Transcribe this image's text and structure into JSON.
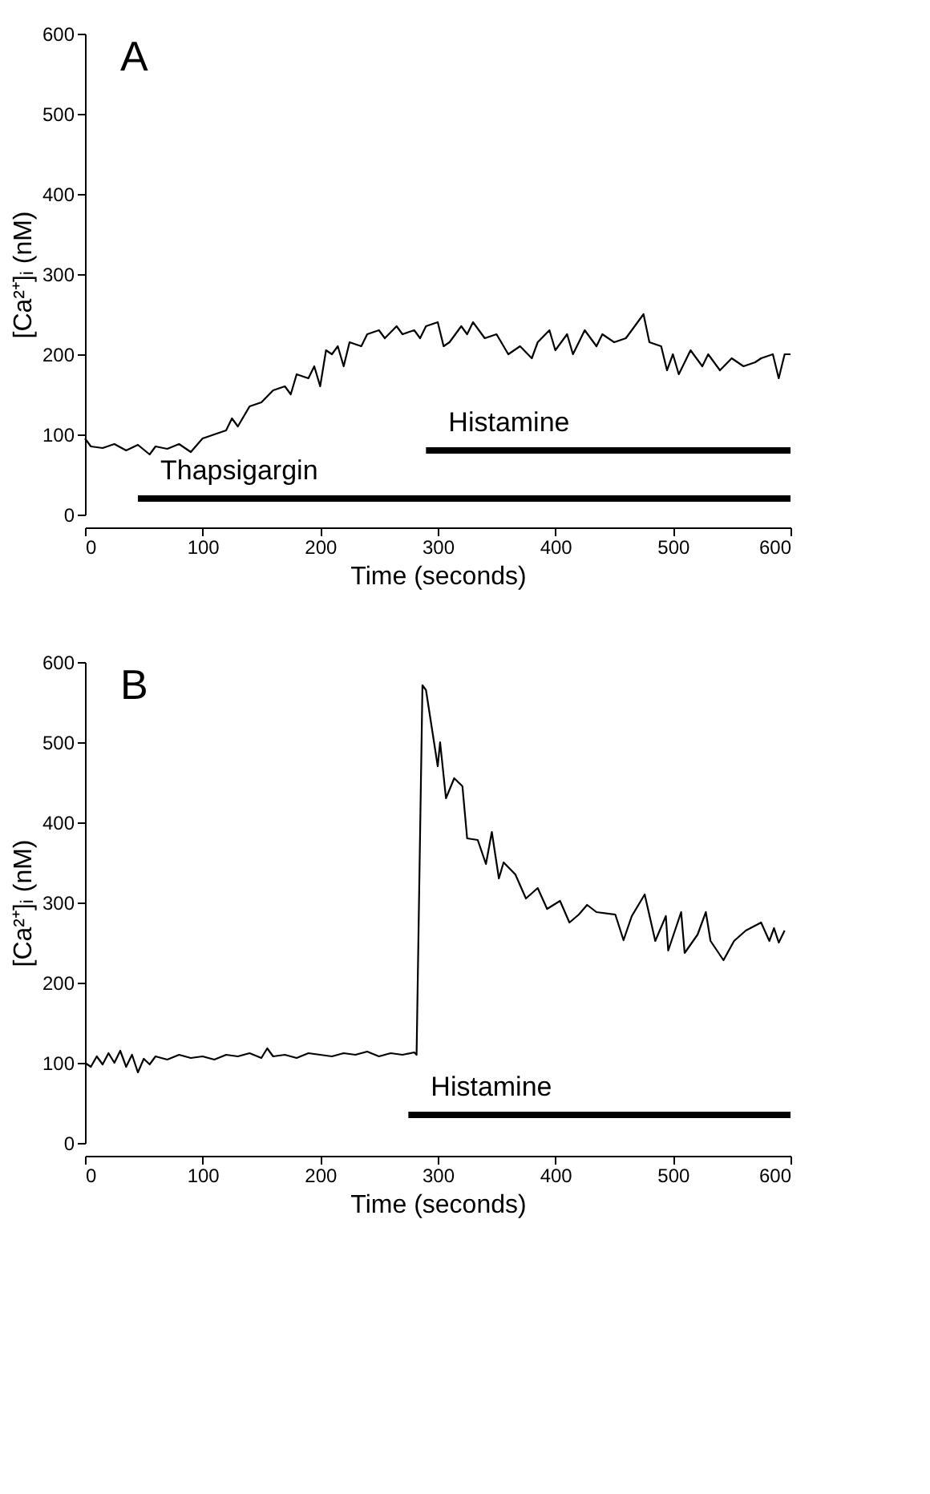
{
  "chart_data": [
    {
      "type": "line",
      "annotations": [
        "A"
      ],
      "xlabel": "Time  (seconds)",
      "ylabel": "[Ca²⁺]ᵢ  (nM)",
      "xlim": [
        0,
        600
      ],
      "ylim": [
        0,
        600
      ],
      "xticks": [
        0,
        100,
        200,
        300,
        400,
        500,
        600
      ],
      "yticks": [
        0,
        100,
        200,
        300,
        400,
        500,
        600
      ],
      "grid": false,
      "marker": "none",
      "line_style": "solid",
      "series": [
        {
          "color": "#000000",
          "x": [
            0,
            5,
            15,
            25,
            35,
            45,
            55,
            60,
            70,
            80,
            90,
            100,
            110,
            120,
            125,
            130,
            140,
            150,
            160,
            170,
            175,
            180,
            190,
            195,
            200,
            205,
            210,
            215,
            220,
            225,
            235,
            240,
            250,
            255,
            265,
            270,
            280,
            285,
            290,
            300,
            305,
            310,
            320,
            325,
            330,
            340,
            350,
            360,
            370,
            380,
            385,
            395,
            400,
            410,
            415,
            425,
            435,
            440,
            450,
            460,
            470,
            475,
            480,
            490,
            495,
            500,
            505,
            515,
            525,
            530,
            540,
            550,
            560,
            570,
            575,
            585,
            590,
            595,
            600
          ],
          "values": [
            95,
            85,
            83,
            88,
            80,
            87,
            75,
            85,
            82,
            88,
            78,
            95,
            100,
            105,
            120,
            110,
            135,
            140,
            155,
            160,
            150,
            175,
            170,
            185,
            160,
            205,
            200,
            210,
            185,
            215,
            210,
            225,
            230,
            220,
            235,
            225,
            230,
            220,
            235,
            240,
            210,
            215,
            235,
            225,
            240,
            220,
            225,
            200,
            210,
            195,
            215,
            230,
            205,
            225,
            200,
            230,
            210,
            225,
            215,
            220,
            240,
            250,
            215,
            210,
            180,
            200,
            175,
            205,
            185,
            200,
            180,
            195,
            185,
            190,
            195,
            200,
            170,
            200,
            200
          ]
        },
        {
          "name": "Thapsigargin",
          "color": "#000000",
          "x": [
            45,
            600
          ],
          "values": [
            20,
            20
          ]
        },
        {
          "name": "Histamine",
          "color": "#000000",
          "x": [
            290,
            600
          ],
          "values": [
            80,
            80
          ]
        }
      ]
    },
    {
      "type": "line",
      "annotations": [
        "B"
      ],
      "xlabel": "Time  (seconds)",
      "ylabel": "[Ca²⁺]ᵢ  (nM)",
      "xlim": [
        0,
        600
      ],
      "ylim": [
        0,
        600
      ],
      "xticks": [
        0,
        100,
        200,
        300,
        400,
        500,
        600
      ],
      "yticks": [
        0,
        100,
        200,
        300,
        400,
        500,
        600
      ],
      "grid": false,
      "marker": "none",
      "line_style": "solid",
      "series": [
        {
          "color": "#000000",
          "x": [
            0,
            5,
            10,
            15,
            20,
            25,
            30,
            35,
            40,
            45,
            50,
            55,
            60,
            70,
            80,
            90,
            100,
            110,
            120,
            130,
            140,
            150,
            155,
            160,
            170,
            180,
            190,
            200,
            210,
            220,
            230,
            240,
            250,
            260,
            270,
            280,
            282,
            287,
            290,
            300,
            302,
            307,
            314,
            321,
            325,
            334,
            341,
            346,
            352,
            356,
            366,
            375,
            385,
            393,
            404,
            412,
            420,
            427,
            435,
            451,
            458,
            465,
            476,
            485,
            494,
            496,
            507,
            510,
            521,
            528,
            532,
            543,
            552,
            562,
            575,
            582,
            586,
            590,
            595
          ],
          "values": [
            100,
            95,
            108,
            98,
            112,
            100,
            115,
            95,
            110,
            88,
            105,
            98,
            108,
            104,
            110,
            106,
            108,
            104,
            110,
            108,
            112,
            106,
            118,
            108,
            110,
            106,
            112,
            110,
            108,
            112,
            110,
            114,
            108,
            112,
            110,
            113,
            110,
            571,
            565,
            470,
            500,
            430,
            455,
            445,
            380,
            378,
            348,
            388,
            330,
            350,
            335,
            305,
            318,
            292,
            302,
            275,
            285,
            297,
            288,
            285,
            253,
            283,
            310,
            252,
            283,
            240,
            288,
            237,
            260,
            288,
            252,
            228,
            252,
            265,
            275,
            252,
            268,
            250,
            265
          ]
        },
        {
          "name": "Histamine",
          "color": "#000000",
          "x": [
            275,
            600
          ],
          "values": [
            35,
            35
          ]
        }
      ]
    }
  ]
}
